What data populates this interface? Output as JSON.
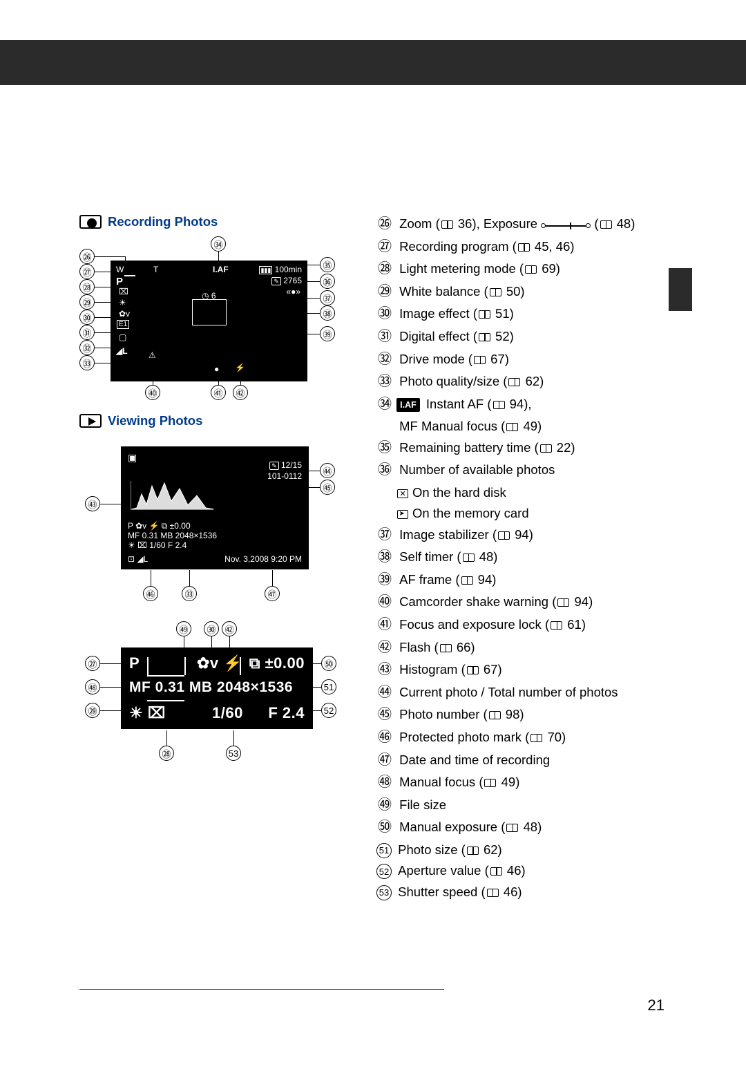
{
  "page_number": "21",
  "sections": {
    "recording": {
      "title": "Recording Photos"
    },
    "viewing": {
      "title": "Viewing Photos"
    }
  },
  "legend": [
    {
      "n": "㉖",
      "text": "Zoom (📖 36), Exposure ",
      "tail": " (📖 48)",
      "slider": true
    },
    {
      "n": "㉗",
      "text": "Recording program (📖 45, 46)"
    },
    {
      "n": "㉘",
      "text": "Light metering mode (📖 69)"
    },
    {
      "n": "㉙",
      "text": "White balance (📖 50)"
    },
    {
      "n": "㉚",
      "text": "Image effect (📖 51)"
    },
    {
      "n": "㉛",
      "text": "Digital effect (📖 52)"
    },
    {
      "n": "㉜",
      "text": "Drive mode (📖 67)"
    },
    {
      "n": "㉝",
      "text": "Photo quality/size (📖 62)"
    },
    {
      "n": "㉞",
      "iaf": true,
      "text": " Instant AF (📖 94),",
      "line2": "MF Manual focus (📖 49)"
    },
    {
      "n": "㉟",
      "text": "Remaining battery time (📖 22)"
    },
    {
      "n": "㊱",
      "text": "Number of available photos",
      "sub_hd": "On the hard disk",
      "sub_sd": "On the memory card"
    },
    {
      "n": "㊲",
      "text": "Image stabilizer (📖 94)"
    },
    {
      "n": "㊳",
      "text": "Self timer (📖 48)"
    },
    {
      "n": "㊴",
      "text": "AF frame (📖 94)"
    },
    {
      "n": "㊵",
      "text": "Camcorder shake warning (📖 94)"
    },
    {
      "n": "㊶",
      "text": "Focus and exposure lock (📖 61)"
    },
    {
      "n": "㊷",
      "text": "Flash (📖 66)"
    },
    {
      "n": "㊸",
      "text": "Histogram (📖 67)"
    },
    {
      "n": "㊹",
      "text": "Current photo / Total number of photos"
    },
    {
      "n": "㊺",
      "text": "Photo number (📖 98)"
    },
    {
      "n": "㊻",
      "text": "Protected photo mark (📖 70)"
    },
    {
      "n": "㊼",
      "text": "Date and time of recording"
    },
    {
      "n": "㊽",
      "text": "Manual focus (📖 49)"
    },
    {
      "n": "㊾",
      "text": "File size"
    },
    {
      "n": "㊿",
      "text": "Manual exposure (📖 48)"
    },
    {
      "n": "51",
      "circ": true,
      "text": "Photo size (📖 62)"
    },
    {
      "n": "52",
      "circ": true,
      "text": "Aperture value (📖 46)"
    },
    {
      "n": "53",
      "circ": true,
      "text": "Shutter speed (📖 46)"
    }
  ],
  "screen1": {
    "battery": "100min",
    "shots": "2765",
    "iaf": "I.AF",
    "p": "P",
    "timer": "6",
    "ql": "◢L",
    "zoom_w": "W",
    "zoom_t": "T"
  },
  "screen2": {
    "count": "12/15",
    "photo_no": "101-0112",
    "row1": "P            ✿v ⚡   ⧉ ±0.00",
    "row2": "MF 0.31 MB 2048×1536",
    "row3": "☀ ⌧      1/60     F 2.4",
    "row4_l": "⊡     ◢L",
    "row4_r": "Nov. 3,2008      9:20 PM"
  },
  "screen3": {
    "row1_l": "P",
    "row1_m": "✿v ⚡",
    "row1_r": "⧉ ±0.00",
    "row2": "MF 0.31 MB 2048×1536",
    "row3_l": "☀ ⌧",
    "row3_m": "1/60",
    "row3_r": "F 2.4"
  },
  "callouts": {
    "fig1_left": [
      "㉖",
      "㉗",
      "㉘",
      "㉙",
      "㉚",
      "㉛",
      "㉜",
      "㉝"
    ],
    "fig1_top": "㉞",
    "fig1_right": [
      "㉟",
      "㊱",
      "㊲",
      "㊳",
      "㊴"
    ],
    "fig1_bot": [
      "㊵",
      "㊶",
      "㊷"
    ],
    "fig2_left": "㊸",
    "fig2_right": [
      "㊹",
      "㊺"
    ],
    "fig2_bot": [
      "㊻",
      "㉝",
      "㊼"
    ],
    "fig3_top": [
      "㊾",
      "㉚",
      "㊷"
    ],
    "fig3_left": [
      "㉗",
      "㊽",
      "㉙"
    ],
    "fig3_right": [
      "㊿",
      "51",
      "52"
    ],
    "fig3_bot": [
      "㉘",
      "53"
    ]
  }
}
